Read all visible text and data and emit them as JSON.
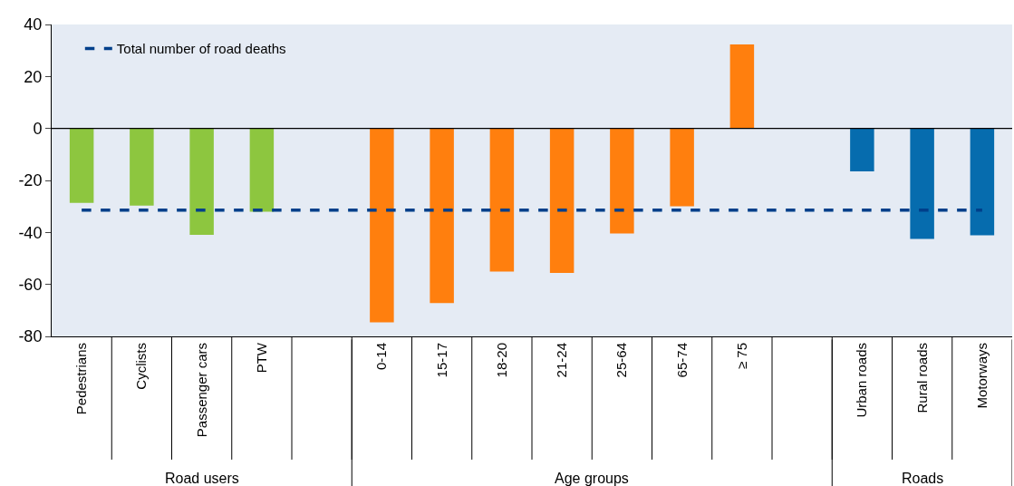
{
  "chart_data": {
    "type": "bar",
    "categories": [
      "Pedestrians",
      "Cyclists",
      "Passenger cars",
      "PTW",
      null,
      "0-14",
      "15-17",
      "18-20",
      "21-24",
      "25-64",
      "65-74",
      "≥ 75",
      null,
      "Urban roads",
      "Rural roads",
      "Motorways"
    ],
    "values": [
      -28.6,
      -29.7,
      -40.9,
      -32.0,
      null,
      -74.6,
      -67.2,
      -55.1,
      -55.6,
      -40.4,
      -29.9,
      32.3,
      null,
      -16.5,
      -42.5,
      -41.1
    ],
    "colors": [
      "#8dc63f",
      "#8dc63f",
      "#8dc63f",
      "#8dc63f",
      "#8dc63f",
      "#ff7f0e",
      "#ff7f0e",
      "#ff7f0e",
      "#ff7f0e",
      "#ff7f0e",
      "#ff7f0e",
      "#ff7f0e",
      "#ff7f0e",
      "#066cae",
      "#066cae",
      "#066cae"
    ],
    "ylim": [
      -80,
      40
    ],
    "yticks": [
      -80,
      -60,
      -40,
      -20,
      0,
      20,
      40
    ],
    "ref_lines": [
      {
        "axis": "y",
        "value": -31.4,
        "label": "Total number of road deaths",
        "color": "#003f8a",
        "line_style": "dashed"
      }
    ],
    "annotations": [
      "Road users",
      "Age groups",
      "Roads"
    ],
    "legend": "top left"
  }
}
